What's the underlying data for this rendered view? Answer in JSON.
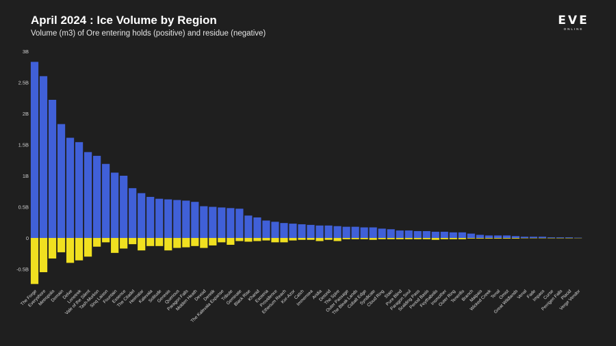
{
  "header": {
    "title": "April 2024 : Ice Volume by Region",
    "subtitle": "Volume (m3) of Ore entering holds (positive) and residue (negative)"
  },
  "logo": {
    "word": "EVE",
    "sub": "ONLINE"
  },
  "colors": {
    "background": "#1f1f1f",
    "positive": "#4060d8",
    "negative": "#f0e020",
    "axis_text": "#cfcfcf"
  },
  "chart_data": {
    "type": "bar",
    "stacked": "diverging",
    "title": "April 2024 : Ice Volume by Region",
    "subtitle": "Volume (m3) of Ore entering holds (positive) and residue (negative)",
    "xlabel": "",
    "ylabel": "",
    "ylim": [
      -0.8,
      3.0
    ],
    "yticks": [
      3,
      2.5,
      2,
      1.5,
      1,
      0.5,
      0,
      -0.5
    ],
    "yticklabels": [
      "3B",
      "2.5B",
      "2B",
      "1.5B",
      "1B",
      "0.5B",
      "0",
      "-0.5B"
    ],
    "grid": false,
    "units": "billions m3",
    "categories": [
      "The Forge",
      "Everyshore",
      "Metropolis",
      "Domain",
      "Delve",
      "Lonetrek",
      "Vale of the Silent",
      "Tash-Murkon",
      "Sinq Laison",
      "Fountain",
      "Essence",
      "The Citadel",
      "Heimatar",
      "Kalevala",
      "Solitude",
      "Genesis",
      "Querious",
      "Paragon Falls",
      "Molden Heath",
      "Devoid",
      "Derelik",
      "The Kalevala Expanse",
      "Tribute",
      "Geminate",
      "Black Rise",
      "Khanid",
      "Esoteria",
      "Providence",
      "Etherium Reach",
      "Kor-Azor",
      "Catch",
      "Immensea",
      "Aridia",
      "Detorid",
      "The Spire",
      "Outer Passage",
      "The Bleak Lands",
      "Cobalt Edge",
      "Syndicate",
      "Cloud Ring",
      "Stain",
      "Pure Blind",
      "Paragon Soul",
      "Scalding Pass",
      "Period Basis",
      "Feythabolis",
      "Insmother",
      "Outer Ring",
      "Tenerifis",
      "Branch",
      "Malpais",
      "Wicked Creek",
      "Tenal",
      "Omist",
      "Great Wildlands",
      "Venal",
      "Fade",
      "Impass",
      "Curse",
      "Perrigen Falls",
      "Placid",
      "Verge Vendor"
    ],
    "series": [
      {
        "name": "Ore entering holds (positive)",
        "color": "#4060d8",
        "values": [
          2.83,
          2.6,
          2.22,
          1.83,
          1.61,
          1.54,
          1.38,
          1.32,
          1.19,
          1.05,
          1.0,
          0.8,
          0.72,
          0.66,
          0.63,
          0.62,
          0.61,
          0.6,
          0.58,
          0.51,
          0.5,
          0.49,
          0.48,
          0.47,
          0.36,
          0.33,
          0.28,
          0.26,
          0.24,
          0.23,
          0.22,
          0.21,
          0.2,
          0.2,
          0.19,
          0.18,
          0.18,
          0.17,
          0.17,
          0.15,
          0.14,
          0.12,
          0.12,
          0.11,
          0.11,
          0.1,
          0.1,
          0.09,
          0.09,
          0.07,
          0.05,
          0.04,
          0.04,
          0.04,
          0.03,
          0.02,
          0.02,
          0.02,
          0.01,
          0.01,
          0.01,
          0.005
        ]
      },
      {
        "name": "Residue (negative)",
        "color": "#f0e020",
        "values": [
          -0.74,
          -0.55,
          -0.33,
          -0.23,
          -0.4,
          -0.36,
          -0.3,
          -0.14,
          -0.07,
          -0.24,
          -0.17,
          -0.1,
          -0.2,
          -0.13,
          -0.13,
          -0.2,
          -0.16,
          -0.15,
          -0.13,
          -0.16,
          -0.12,
          -0.07,
          -0.11,
          -0.05,
          -0.06,
          -0.05,
          -0.04,
          -0.07,
          -0.07,
          -0.04,
          -0.03,
          -0.03,
          -0.05,
          -0.03,
          -0.05,
          -0.02,
          -0.02,
          -0.02,
          -0.03,
          -0.02,
          -0.02,
          -0.02,
          -0.02,
          -0.02,
          -0.02,
          -0.03,
          -0.02,
          -0.02,
          -0.02,
          -0.01,
          -0.01,
          -0.01,
          -0.01,
          -0.01,
          -0.01,
          -0.005,
          -0.005,
          -0.005,
          -0.005,
          -0.005,
          -0.005,
          -0.002
        ]
      }
    ]
  }
}
